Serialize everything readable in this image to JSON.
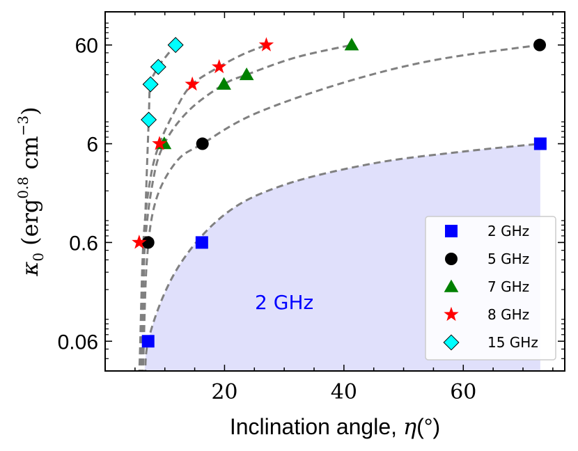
{
  "chart_data": {
    "type": "scatter",
    "title": "",
    "xlabel": "Inclination angle, η(°)",
    "ylabel": "κ0 (erg^0.8 cm^-3)",
    "ylabel_parts": {
      "symbol": "κ",
      "sub": "0",
      "open": "(erg",
      "exp": "0.8",
      "mid": " cm",
      "exp2": "−3",
      "close": ")"
    },
    "xlabel_parts": {
      "text": "Inclination angle, ",
      "symbol": "η",
      "unit": "(°)"
    },
    "xlim": [
      0,
      77
    ],
    "ylim": [
      0.03,
      130
    ],
    "yscale": "log",
    "x_ticks": [
      20,
      40,
      60
    ],
    "x_tick_labels": [
      "20",
      "40",
      "60"
    ],
    "y_ticks": [
      0.06,
      0.6,
      6,
      60
    ],
    "y_tick_labels": [
      "0.06",
      "0.6",
      "6",
      "60"
    ],
    "annotation": {
      "text": "2 GHz",
      "x": 30,
      "y": 0.15,
      "color": "#0000ff"
    },
    "fill_series": "2 GHz",
    "fill_color": "#e0e0fb",
    "series": [
      {
        "name": "2 GHz",
        "label": "2 GHz",
        "marker": "square",
        "color": "#0000ff",
        "x": [
          7.2,
          16.2,
          72.9
        ],
        "y": [
          0.06,
          0.6,
          6
        ],
        "curve_x": [
          7.2,
          12,
          20,
          30,
          45,
          60,
          72.9
        ],
        "curve_y": [
          0.06,
          0.32,
          1.15,
          2.3,
          3.8,
          5.0,
          6
        ]
      },
      {
        "name": "5 GHz",
        "label": "5 GHz",
        "marker": "circle",
        "color": "#000000",
        "x": [
          7.2,
          16.3,
          72.8
        ],
        "y": [
          0.6,
          6,
          60
        ],
        "curve_x": [
          6.4,
          7.0,
          8.5,
          12,
          16.3,
          25,
          40,
          55,
          72.8
        ],
        "curve_y": [
          0.04,
          0.4,
          1.6,
          4.0,
          6,
          12,
          25,
          42,
          60
        ]
      },
      {
        "name": "7 GHz",
        "label": "7 GHz",
        "marker": "triangle",
        "color": "#008000",
        "x": [
          9.9,
          19.9,
          23.7,
          41.3
        ],
        "y": [
          6,
          24,
          30,
          60
        ],
        "curve_x": [
          6.0,
          6.6,
          8.0,
          9.9,
          14,
          19.9,
          23.7,
          32,
          41.3
        ],
        "curve_y": [
          0.04,
          0.5,
          2.5,
          6,
          13,
          24,
          30,
          45,
          60
        ]
      },
      {
        "name": "8 GHz",
        "label": "8 GHz",
        "marker": "star",
        "color": "#ff0000",
        "x": [
          5.7,
          9.1,
          14.6,
          19.1,
          27.0
        ],
        "y": [
          0.6,
          6,
          24,
          36,
          60
        ],
        "curve_x": [
          5.8,
          6.4,
          7.5,
          9.1,
          12,
          14.6,
          19.1,
          23,
          27.0
        ],
        "curve_y": [
          0.04,
          0.6,
          2.5,
          6,
          14,
          24,
          36,
          48,
          60
        ]
      },
      {
        "name": "15 GHz",
        "label": "15 GHz",
        "marker": "diamond",
        "color": "#00ffff",
        "x": [
          7.3,
          7.6,
          8.9,
          11.8
        ],
        "y": [
          10.5,
          24,
          36,
          60
        ],
        "curve_x": [
          6.2,
          6.6,
          7.3,
          7.6,
          8.9,
          10.2,
          11.8
        ],
        "curve_y": [
          0.04,
          0.6,
          10.5,
          24,
          36,
          46,
          60
        ]
      }
    ],
    "legend_position": "lower-right"
  }
}
